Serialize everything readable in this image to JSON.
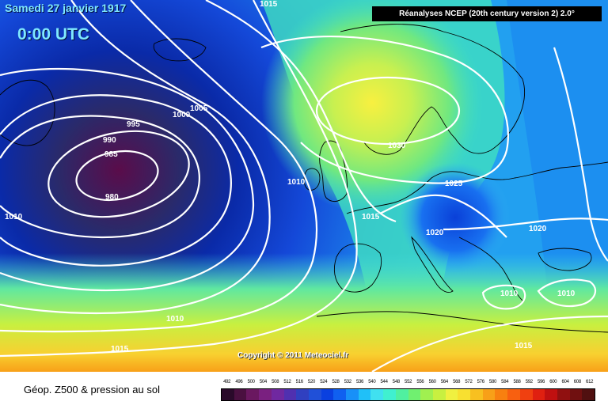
{
  "title": {
    "date": "Samedi 27 janvier 1917",
    "time": "0:00 UTC"
  },
  "source": "Réanalyses NCEP (20th century version 2) 2.0°",
  "copyright": "Copyright © 2011 Meteociel.fr",
  "legend_title": "Géop. Z500 & pression au sol",
  "legend": {
    "ticks": [
      "492",
      "496",
      "500",
      "504",
      "508",
      "512",
      "516",
      "520",
      "524",
      "528",
      "532",
      "536",
      "540",
      "544",
      "548",
      "552",
      "556",
      "560",
      "564",
      "568",
      "572",
      "576",
      "580",
      "584",
      "588",
      "592",
      "596",
      "600",
      "604",
      "608",
      "612"
    ],
    "colors": [
      "#2a0a2a",
      "#4a1040",
      "#6a1860",
      "#7a2080",
      "#7028a0",
      "#5030b0",
      "#3040c0",
      "#2050d8",
      "#0a40e0",
      "#1060f0",
      "#1890f8",
      "#20c0f8",
      "#40e0f0",
      "#40f0d0",
      "#50f0a0",
      "#70f070",
      "#a0f050",
      "#c8f040",
      "#f0f040",
      "#f8e030",
      "#f8c020",
      "#f8a018",
      "#f88010",
      "#f86010",
      "#f04010",
      "#e02010",
      "#c01010",
      "#901010",
      "#701010",
      "#501010"
    ]
  },
  "isobars": [
    {
      "label": "1015"
    },
    {
      "label": "1005"
    },
    {
      "label": "1000"
    },
    {
      "label": "995"
    },
    {
      "label": "990"
    },
    {
      "label": "985"
    },
    {
      "label": "980"
    },
    {
      "label": "1010"
    },
    {
      "label": "1010"
    },
    {
      "label": "1030"
    },
    {
      "label": "1025"
    },
    {
      "label": "1015"
    },
    {
      "label": "1020"
    },
    {
      "label": "1020"
    },
    {
      "label": "1010"
    },
    {
      "label": "1010"
    },
    {
      "label": "1010"
    },
    {
      "label": "1015"
    },
    {
      "label": "1015"
    }
  ]
}
